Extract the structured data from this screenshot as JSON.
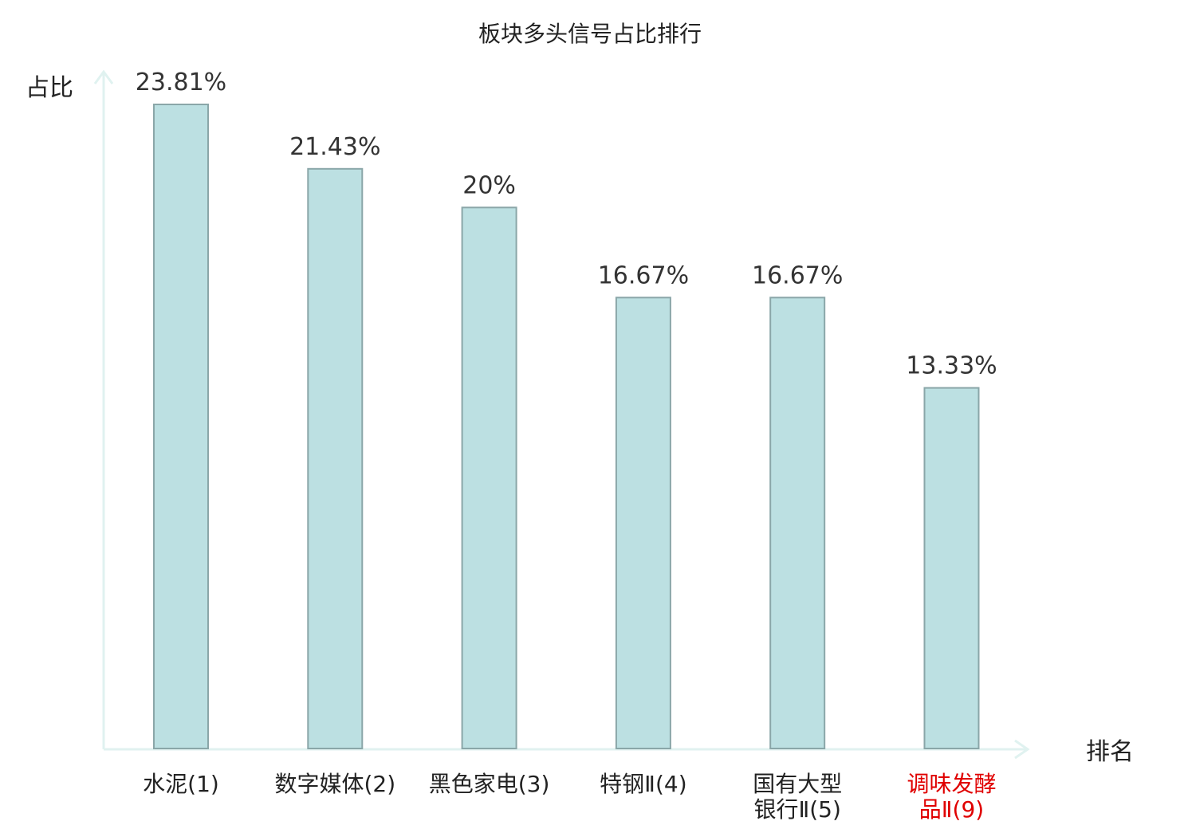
{
  "chart_data": {
    "type": "bar",
    "title": "板块多头信号占比排行",
    "ylabel": "占比",
    "xlabel": "排名",
    "categories": [
      [
        "水泥(1)"
      ],
      [
        "数字媒体(2)"
      ],
      [
        "黑色家电(3)"
      ],
      [
        "特钢Ⅱ(4)"
      ],
      [
        "国有大型",
        "银行Ⅱ(5)"
      ],
      [
        "调味发酵",
        "品Ⅱ(9)"
      ]
    ],
    "values": [
      23.81,
      21.43,
      20,
      16.67,
      16.67,
      13.33
    ],
    "value_labels": [
      "23.81%",
      "21.43%",
      "20%",
      "16.67%",
      "16.67%",
      "13.33%"
    ],
    "highlighted_category_index": 5,
    "ylim": [
      0,
      23.81
    ],
    "grid": false,
    "colors": {
      "bar_fill": "#bce0e2",
      "bar_stroke": "#8aa6a8",
      "axis": "#e0f2f0",
      "label_text": "#222222",
      "highlight_text": "#e00000"
    }
  }
}
